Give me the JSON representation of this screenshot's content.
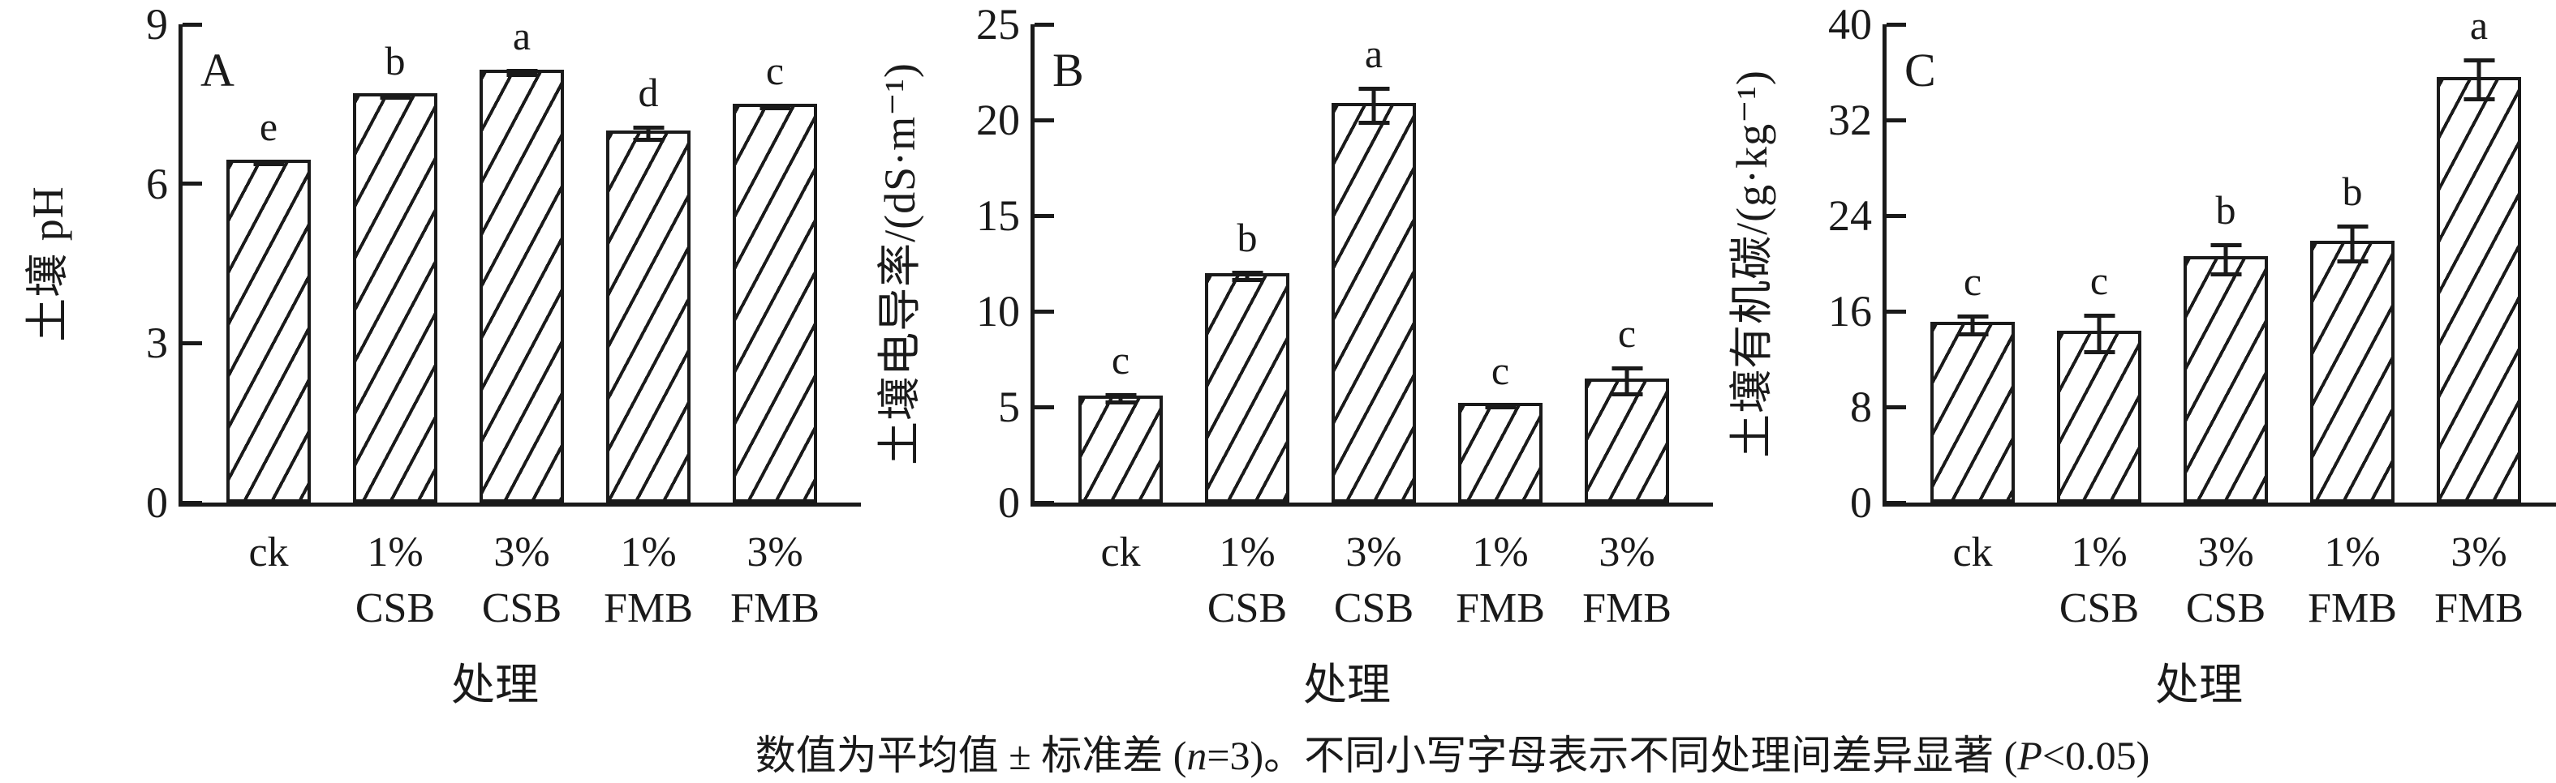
{
  "figure": {
    "caption_full": "数值为平均值 ± 标准差 (n=3)。不同小写字母表示不同处理间差异显著 (P<0.05)",
    "caption_parts": [
      {
        "text": "数值为平均值 ± 标准差 (",
        "italic": false
      },
      {
        "text": "n",
        "italic": true
      },
      {
        "text": "=3)。不同小写字母表示不同处理间差异显著 (",
        "italic": false
      },
      {
        "text": "P",
        "italic": true
      },
      {
        "text": "<0.05)",
        "italic": false
      }
    ],
    "ink_color": "#1a1a1a",
    "bar_fill": "#ffffff",
    "hatch_style": "black forward-slash diagonal hatch"
  },
  "chart_data": [
    {
      "type": "bar",
      "panel_label": "A",
      "title": "",
      "ylabel": "土壤 pH",
      "xlabel": "处理",
      "ylim": [
        0,
        9
      ],
      "yticks": [
        0,
        3,
        6,
        9
      ],
      "grid": false,
      "legend": "none",
      "categories": [
        "ck",
        "1% CSB",
        "3% CSB",
        "1% FMB",
        "3% FMB"
      ],
      "values": [
        6.45,
        7.7,
        8.15,
        7.0,
        7.5
      ],
      "errors": [
        0.06,
        0.05,
        0.08,
        0.15,
        0.06
      ],
      "sig_letters": [
        "e",
        "b",
        "a",
        "d",
        "c"
      ]
    },
    {
      "type": "bar",
      "panel_label": "B",
      "title": "",
      "ylabel": "土壤电导率/(dS·m⁻¹)",
      "xlabel": "处理",
      "ylim": [
        0,
        25
      ],
      "yticks": [
        0,
        5,
        10,
        15,
        20,
        25
      ],
      "grid": false,
      "legend": "none",
      "categories": [
        "ck",
        "1% CSB",
        "3% CSB",
        "1% FMB",
        "3% FMB"
      ],
      "values": [
        5.6,
        12.0,
        20.9,
        5.2,
        6.5
      ],
      "errors": [
        0.3,
        0.3,
        1.0,
        0.15,
        0.8
      ],
      "sig_letters": [
        "c",
        "b",
        "a",
        "c",
        "c"
      ]
    },
    {
      "type": "bar",
      "panel_label": "C",
      "title": "",
      "ylabel": "土壤有机碳/(g·kg⁻¹)",
      "xlabel": "处理",
      "ylim": [
        0,
        40
      ],
      "yticks": [
        0,
        8,
        16,
        24,
        32,
        40
      ],
      "grid": false,
      "legend": "none",
      "categories": [
        "ck",
        "1% CSB",
        "3% CSB",
        "1% FMB",
        "3% FMB"
      ],
      "values": [
        15.1,
        14.4,
        20.6,
        21.9,
        35.6
      ],
      "errors": [
        0.9,
        1.7,
        1.4,
        1.6,
        1.8
      ],
      "sig_letters": [
        "c",
        "c",
        "b",
        "b",
        "a"
      ]
    }
  ]
}
